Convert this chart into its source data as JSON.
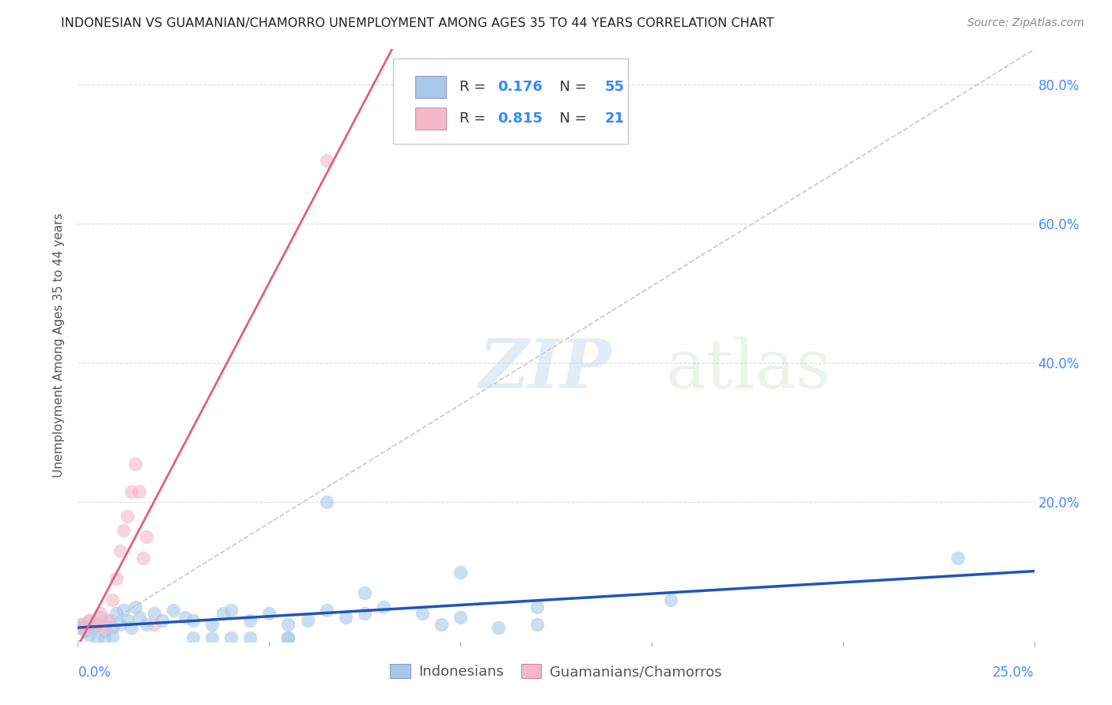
{
  "title": "INDONESIAN VS GUAMANIAN/CHAMORRO UNEMPLOYMENT AMONG AGES 35 TO 44 YEARS CORRELATION CHART",
  "source": "Source: ZipAtlas.com",
  "ylabel": "Unemployment Among Ages 35 to 44 years",
  "R_indonesian": 0.176,
  "N_indonesian": 55,
  "R_guamanian": 0.815,
  "N_guamanian": 21,
  "color_indonesian": "#a8c8e8",
  "color_guamanian": "#f4b8c8",
  "color_line_indonesian": "#2255bb",
  "color_line_guamanian": "#e06080",
  "color_diagonal": "#bbbbbb",
  "xlim": [
    0.0,
    0.25
  ],
  "ylim": [
    0.0,
    0.85
  ],
  "background_color": "#ffffff",
  "grid_color": "#cccccc",
  "indo_x": [
    0.0,
    0.001,
    0.002,
    0.003,
    0.004,
    0.005,
    0.006,
    0.007,
    0.008,
    0.009,
    0.01,
    0.011,
    0.012,
    0.013,
    0.014,
    0.015,
    0.003,
    0.007,
    0.009,
    0.005,
    0.016,
    0.018,
    0.02,
    0.022,
    0.025,
    0.028,
    0.03,
    0.035,
    0.038,
    0.04,
    0.045,
    0.05,
    0.055,
    0.06,
    0.065,
    0.07,
    0.075,
    0.08,
    0.055,
    0.04,
    0.09,
    0.095,
    0.1,
    0.11,
    0.12,
    0.065,
    0.03,
    0.045,
    0.035,
    0.055,
    0.12,
    0.155,
    0.1,
    0.23,
    0.075
  ],
  "indo_y": [
    0.02,
    0.025,
    0.015,
    0.03,
    0.02,
    0.025,
    0.035,
    0.015,
    0.03,
    0.02,
    0.04,
    0.025,
    0.045,
    0.03,
    0.02,
    0.05,
    0.01,
    0.005,
    0.008,
    0.003,
    0.035,
    0.025,
    0.04,
    0.03,
    0.045,
    0.035,
    0.03,
    0.025,
    0.04,
    0.045,
    0.03,
    0.04,
    0.025,
    0.03,
    0.045,
    0.035,
    0.04,
    0.05,
    0.005,
    0.005,
    0.04,
    0.025,
    0.035,
    0.02,
    0.025,
    0.2,
    0.005,
    0.005,
    0.005,
    0.005,
    0.05,
    0.06,
    0.1,
    0.12,
    0.07
  ],
  "guam_x": [
    0.0,
    0.001,
    0.002,
    0.003,
    0.004,
    0.005,
    0.006,
    0.007,
    0.008,
    0.009,
    0.01,
    0.011,
    0.012,
    0.013,
    0.014,
    0.015,
    0.016,
    0.017,
    0.018,
    0.065,
    0.02
  ],
  "guam_y": [
    0.02,
    0.025,
    0.02,
    0.03,
    0.025,
    0.025,
    0.04,
    0.02,
    0.03,
    0.06,
    0.09,
    0.13,
    0.16,
    0.18,
    0.215,
    0.255,
    0.215,
    0.12,
    0.15,
    0.69,
    0.025
  ]
}
